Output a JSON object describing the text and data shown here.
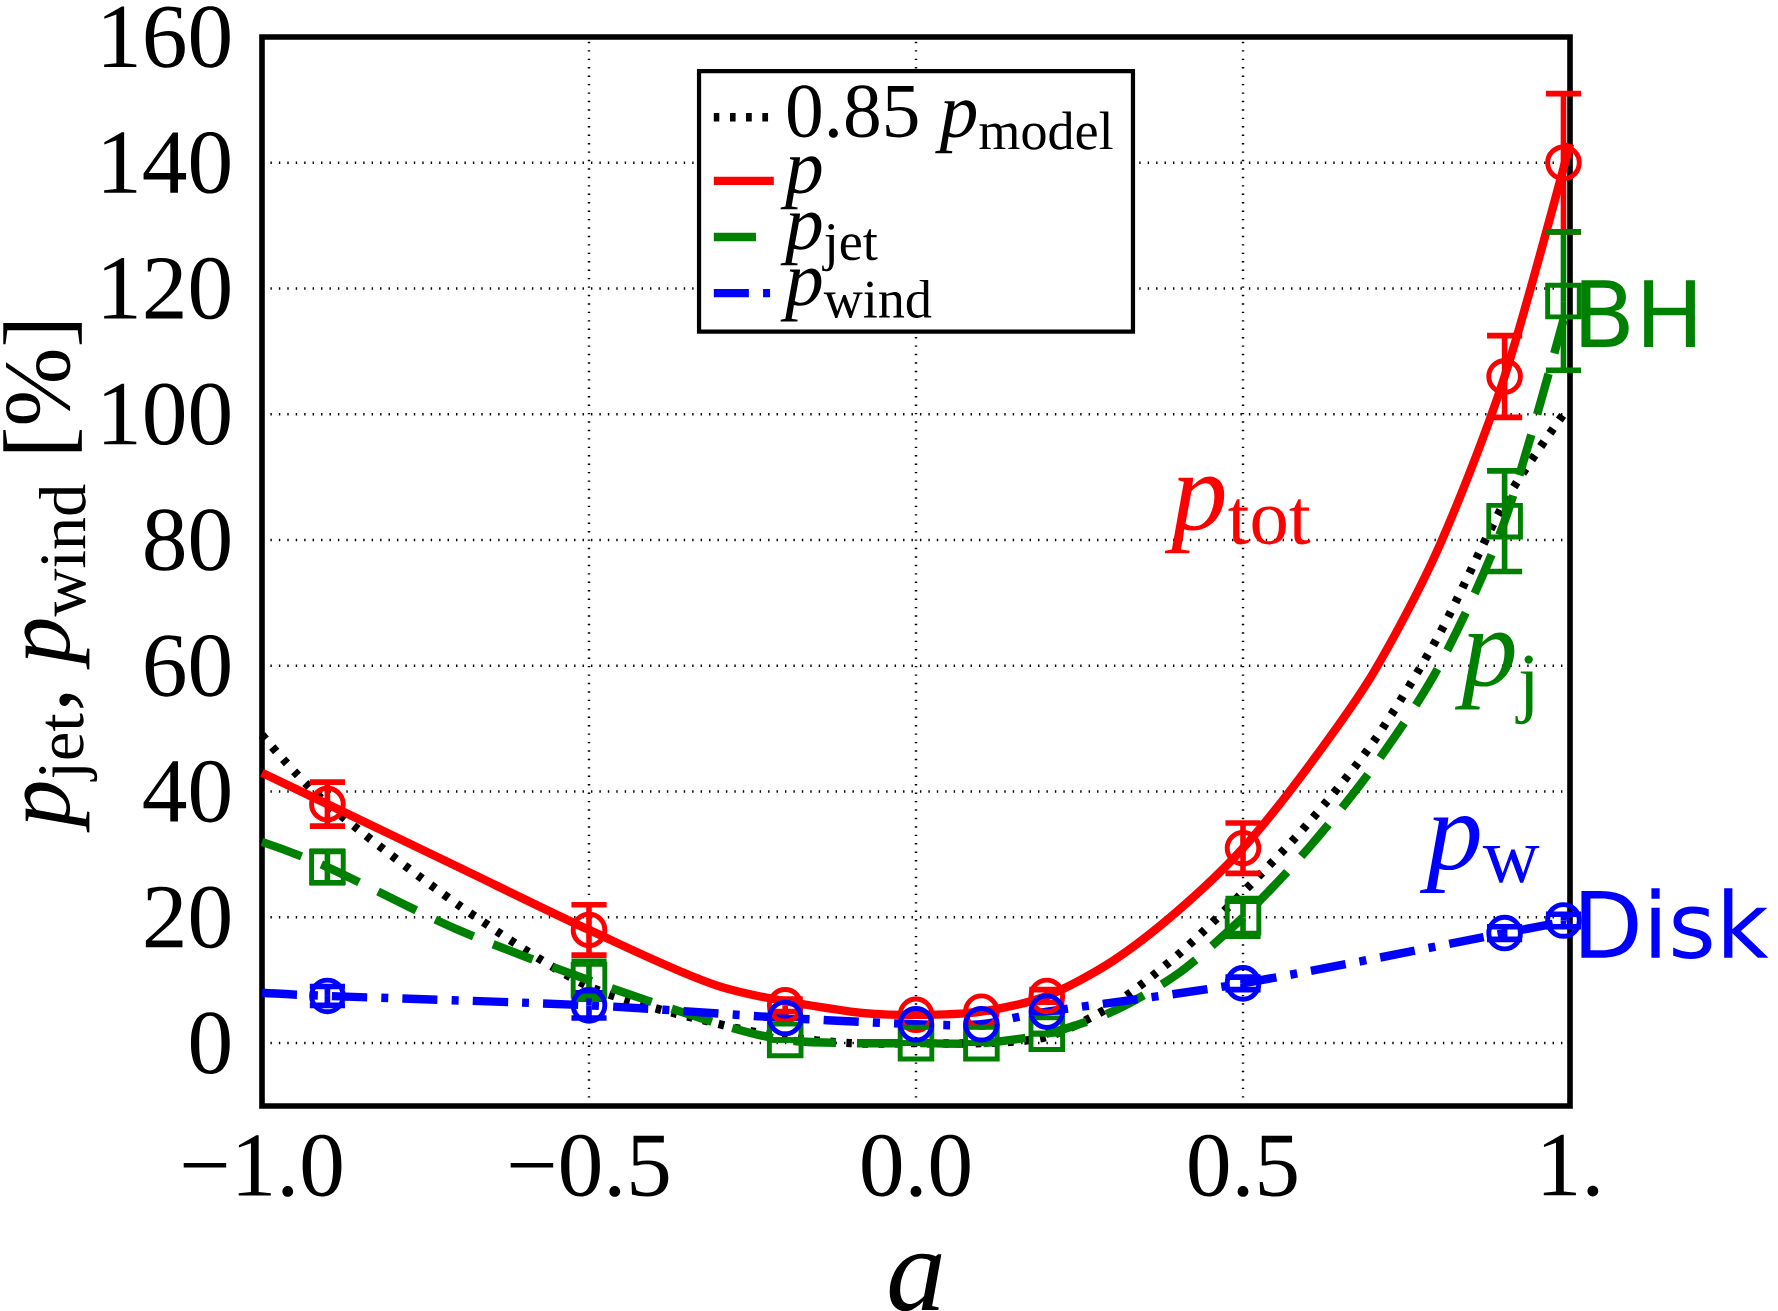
{
  "chart_data": {
    "type": "line",
    "xlabel": "*a*",
    "ylabel": "*p*$_{jet}$, *p*$_{wind}$ [%]",
    "xlim": [
      -1,
      1
    ],
    "ylim": [
      -10,
      160
    ],
    "xticks": [
      {
        "value": -1,
        "label": "−1.0"
      },
      {
        "value": -0.5,
        "label": "−0.5"
      },
      {
        "value": 0,
        "label": "0.0"
      },
      {
        "value": 0.5,
        "label": "0.5"
      },
      {
        "value": 1,
        "label": "1."
      }
    ],
    "yticks": [
      0,
      20,
      40,
      60,
      80,
      100,
      120,
      140,
      160
    ],
    "grid": true,
    "legend": "top",
    "series": [
      {
        "name": "0.85 *p*$_{model}$",
        "color": "#000000",
        "line_style": "dotted",
        "marker": "none",
        "x": [
          -1,
          -0.9,
          -0.7,
          -0.5,
          -0.3,
          -0.2,
          -0.1,
          0,
          0.1,
          0.2,
          0.3,
          0.4,
          0.5,
          0.6,
          0.7,
          0.8,
          0.9,
          0.99
        ],
        "values": [
          49,
          38,
          22,
          9,
          3,
          1,
          0,
          0,
          0,
          1,
          6,
          14,
          24,
          35,
          48,
          65,
          86,
          100
        ]
      },
      {
        "name": "*p*",
        "color": "#ff0000",
        "line_style": "solid",
        "marker": "none",
        "x": [
          -1,
          -0.9,
          -0.7,
          -0.5,
          -0.3,
          -0.1,
          0,
          0.1,
          0.2,
          0.3,
          0.4,
          0.5,
          0.6,
          0.7,
          0.8,
          0.9,
          1.0
        ],
        "values": [
          43,
          38,
          28,
          18,
          9,
          5,
          4.5,
          5,
          7.5,
          13,
          21,
          31,
          44,
          59,
          79,
          106,
          143
        ]
      },
      {
        "name": "*p*$_{jet}$",
        "color": "#008000",
        "line_style": "dashed",
        "marker": "none",
        "x": [
          -1,
          -0.9,
          -0.7,
          -0.5,
          -0.3,
          -0.2,
          -0.1,
          0,
          0.1,
          0.2,
          0.3,
          0.4,
          0.5,
          0.6,
          0.7,
          0.8,
          0.9,
          0.99
        ],
        "values": [
          32,
          28,
          18,
          10,
          3,
          0.5,
          0,
          0,
          0,
          1.5,
          5,
          11,
          20,
          31,
          44,
          60,
          83,
          115
        ]
      },
      {
        "name": "*p*$_{wind}$",
        "color": "#0000ff",
        "line_style": "dashdot",
        "marker": "none",
        "x": [
          -1,
          -0.9,
          -0.5,
          -0.2,
          0,
          0.1,
          0.2,
          0.5,
          0.9,
          1.0
        ],
        "values": [
          8,
          7.5,
          6,
          4,
          3,
          3,
          5,
          9.5,
          17.5,
          19.5
        ]
      },
      {
        "type": "scatter",
        "color": "#ff0000",
        "marker": "circle",
        "x": [
          -0.9,
          -0.5,
          -0.2,
          0,
          0.1,
          0.2,
          0.5,
          0.9,
          0.99
        ],
        "values": [
          38,
          18,
          6,
          4.5,
          5,
          7.5,
          31,
          106,
          140
        ],
        "errors": [
          3.5,
          4,
          1,
          null,
          null,
          1,
          4,
          6.5,
          11
        ]
      },
      {
        "type": "scatter",
        "color": "#008000",
        "marker": "square",
        "x": [
          -0.9,
          -0.5,
          -0.2,
          0,
          0.1,
          0.2,
          0.5,
          0.9,
          0.99
        ],
        "values": [
          28,
          10,
          0.5,
          0,
          0,
          1.5,
          20,
          83,
          118
        ],
        "errors": [
          2.5,
          3,
          null,
          null,
          null,
          null,
          3,
          8,
          11
        ]
      },
      {
        "type": "scatter",
        "color": "#0000ff",
        "marker": "circle",
        "x": [
          -0.9,
          -0.5,
          -0.2,
          0,
          0.1,
          0.2,
          0.5,
          0.9,
          0.99
        ],
        "values": [
          7.5,
          6,
          4,
          3,
          3,
          5,
          9.5,
          17.5,
          19.5
        ],
        "errors": [
          1.5,
          2,
          null,
          null,
          null,
          null,
          1,
          1,
          1
        ]
      }
    ],
    "annotations": [
      "*p*$_{tot}$",
      "*p*$_{j}$",
      "*p*$_{w}$",
      "BH",
      "Disk"
    ]
  }
}
